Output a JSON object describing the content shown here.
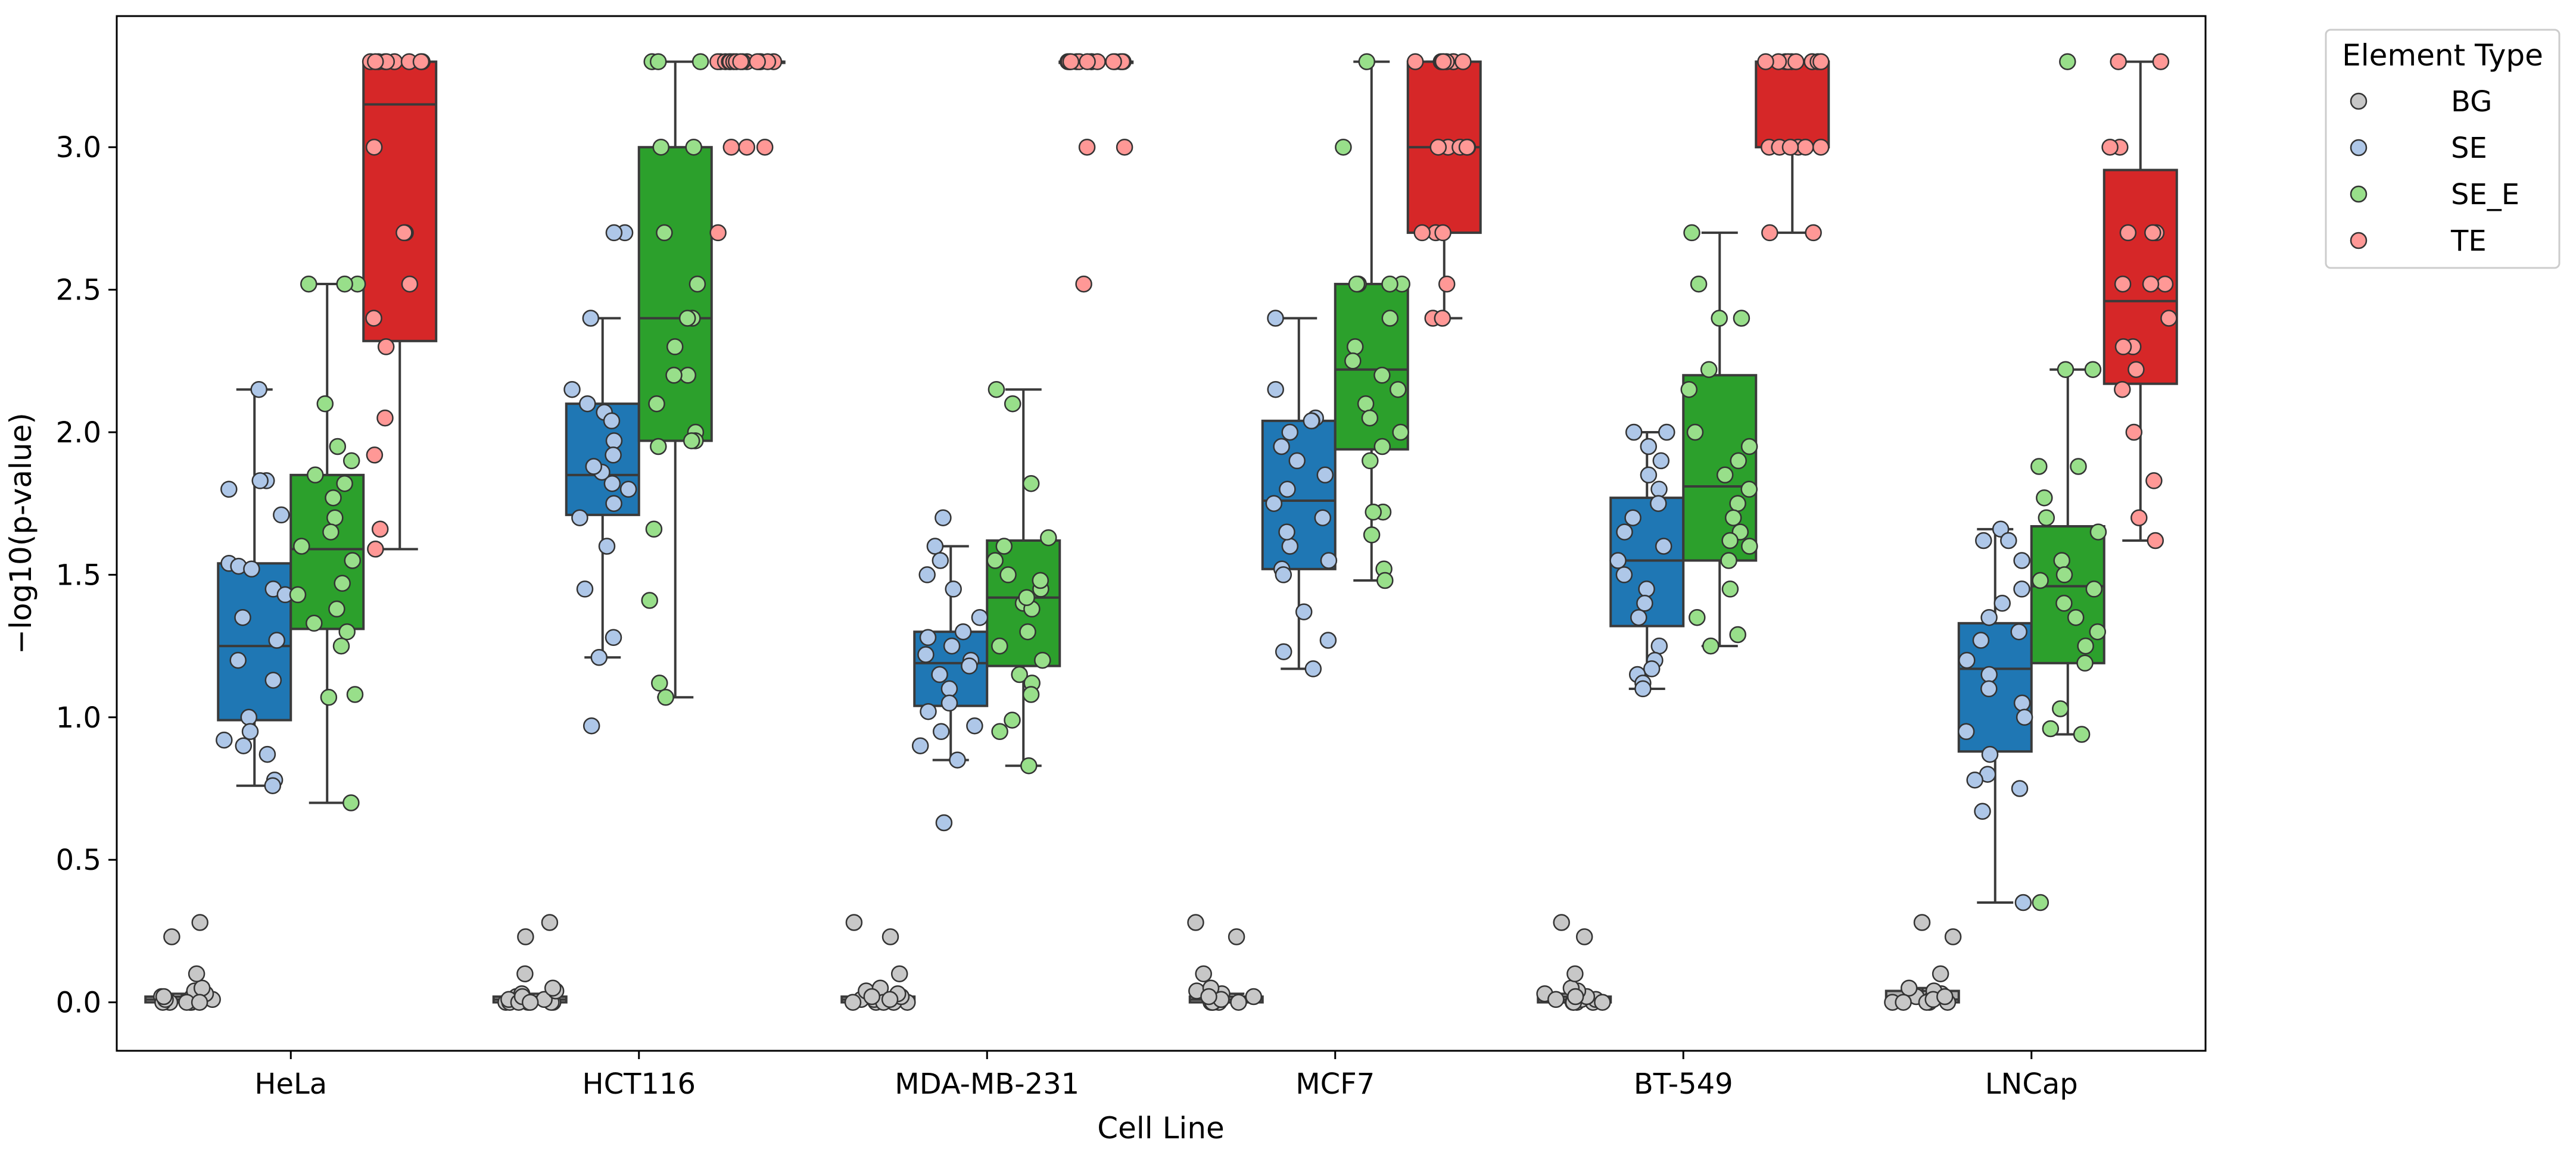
{
  "chart_data": {
    "type": "box",
    "xlabel": "Cell Line",
    "ylabel": "−log10(p-value)",
    "ylim": [
      -0.17,
      3.46
    ],
    "yticks": [
      "0.0",
      "0.5",
      "1.0",
      "1.5",
      "2.0",
      "2.5",
      "3.0"
    ],
    "categories": [
      "HeLa",
      "HCT116",
      "MDA-MB-231",
      "MCF7",
      "BT-549",
      "LNCap"
    ],
    "grid": false,
    "legend": {
      "title": "Element Type",
      "position": "upper-right-outside",
      "entries": [
        "BG",
        "SE",
        "SE_E",
        "TE"
      ]
    },
    "series": [
      {
        "name": "BG",
        "box_color": "#b0b0b0",
        "point_color": "#c7c7c7",
        "stats": [
          {
            "q1": 0.0,
            "median": 0.01,
            "q3": 0.02,
            "whisker_low": 0.0,
            "whisker_high": 0.03
          },
          {
            "q1": 0.0,
            "median": 0.01,
            "q3": 0.02,
            "whisker_low": 0.0,
            "whisker_high": 0.03
          },
          {
            "q1": 0.0,
            "median": 0.01,
            "q3": 0.02,
            "whisker_low": 0.0,
            "whisker_high": 0.03
          },
          {
            "q1": 0.0,
            "median": 0.01,
            "q3": 0.02,
            "whisker_low": 0.0,
            "whisker_high": 0.03
          },
          {
            "q1": 0.0,
            "median": 0.01,
            "q3": 0.02,
            "whisker_low": 0.0,
            "whisker_high": 0.03
          },
          {
            "q1": 0.0,
            "median": 0.01,
            "q3": 0.04,
            "whisker_low": 0.0,
            "whisker_high": 0.05
          }
        ],
        "points": [
          [
            0.0,
            0.0,
            0.0,
            0.01,
            0.01,
            0.02,
            0.02,
            0.03,
            0.04,
            0.05,
            0.1,
            0.23,
            0.28,
            0.0,
            0.0,
            0.01,
            0.02,
            0.0
          ],
          [
            0.0,
            0.0,
            0.0,
            0.0,
            0.01,
            0.01,
            0.02,
            0.03,
            0.04,
            0.05,
            0.1,
            0.23,
            0.28,
            0.0,
            0.01,
            0.0,
            0.02,
            0.0
          ],
          [
            0.0,
            0.0,
            0.0,
            0.01,
            0.01,
            0.02,
            0.03,
            0.04,
            0.05,
            0.1,
            0.23,
            0.28,
            0.0,
            0.0,
            0.01,
            0.02
          ],
          [
            0.0,
            0.0,
            0.0,
            0.01,
            0.01,
            0.02,
            0.03,
            0.04,
            0.05,
            0.1,
            0.23,
            0.28,
            0.0,
            0.0,
            0.01,
            0.02
          ],
          [
            0.0,
            0.0,
            0.0,
            0.01,
            0.01,
            0.02,
            0.03,
            0.04,
            0.05,
            0.1,
            0.23,
            0.28,
            0.0,
            0.0,
            0.01,
            0.02
          ],
          [
            0.0,
            0.0,
            0.0,
            0.01,
            0.01,
            0.02,
            0.03,
            0.04,
            0.05,
            0.1,
            0.23,
            0.28,
            0.0,
            0.0,
            0.01,
            0.02
          ]
        ]
      },
      {
        "name": "SE",
        "box_color": "#1f77b4",
        "point_color": "#aec7e8",
        "stats": [
          {
            "q1": 0.99,
            "median": 1.25,
            "q3": 1.54,
            "whisker_low": 0.76,
            "whisker_high": 2.15
          },
          {
            "q1": 1.71,
            "median": 1.85,
            "q3": 2.1,
            "whisker_low": 1.21,
            "whisker_high": 2.4
          },
          {
            "q1": 1.04,
            "median": 1.19,
            "q3": 1.3,
            "whisker_low": 0.85,
            "whisker_high": 1.6
          },
          {
            "q1": 1.52,
            "median": 1.76,
            "q3": 2.04,
            "whisker_low": 1.17,
            "whisker_high": 2.4
          },
          {
            "q1": 1.32,
            "median": 1.55,
            "q3": 1.77,
            "whisker_low": 1.1,
            "whisker_high": 2.0
          },
          {
            "q1": 0.88,
            "median": 1.17,
            "q3": 1.33,
            "whisker_low": 0.35,
            "whisker_high": 1.66
          }
        ],
        "points": [
          [
            2.15,
            1.83,
            1.8,
            1.71,
            1.54,
            1.53,
            1.52,
            1.45,
            1.35,
            1.27,
            1.2,
            1.13,
            1.0,
            0.95,
            0.92,
            0.9,
            0.87,
            0.78,
            0.76,
            1.43,
            1.83
          ],
          [
            2.7,
            2.4,
            2.15,
            2.1,
            2.07,
            2.04,
            1.97,
            1.92,
            1.86,
            1.82,
            1.8,
            1.75,
            1.7,
            1.6,
            1.45,
            1.28,
            1.21,
            0.97,
            2.7,
            1.88
          ],
          [
            1.7,
            1.6,
            1.55,
            1.5,
            1.45,
            1.35,
            1.3,
            1.25,
            1.2,
            1.18,
            1.15,
            1.1,
            1.05,
            1.02,
            0.97,
            0.95,
            0.9,
            0.85,
            0.63,
            1.22,
            1.28
          ],
          [
            2.4,
            2.15,
            2.05,
            2.04,
            2.04,
            2.0,
            1.95,
            1.9,
            1.85,
            1.8,
            1.75,
            1.7,
            1.6,
            1.55,
            1.52,
            1.5,
            1.37,
            1.27,
            1.23,
            1.17,
            1.65
          ],
          [
            2.0,
            2.0,
            1.95,
            1.9,
            1.85,
            1.8,
            1.75,
            1.7,
            1.65,
            1.6,
            1.55,
            1.5,
            1.45,
            1.4,
            1.35,
            1.25,
            1.2,
            1.17,
            1.15,
            1.12,
            1.1
          ],
          [
            1.66,
            1.62,
            1.55,
            1.45,
            1.4,
            1.35,
            1.3,
            1.27,
            1.2,
            1.15,
            1.1,
            1.05,
            1.0,
            0.95,
            0.87,
            0.8,
            0.78,
            0.75,
            0.67,
            0.35,
            1.62
          ]
        ]
      },
      {
        "name": "SE_E",
        "box_color": "#2ca02c",
        "point_color": "#98df8a",
        "stats": [
          {
            "q1": 1.31,
            "median": 1.59,
            "q3": 1.85,
            "whisker_low": 0.7,
            "whisker_high": 2.52
          },
          {
            "q1": 1.97,
            "median": 2.4,
            "q3": 3.0,
            "whisker_low": 1.07,
            "whisker_high": 3.3
          },
          {
            "q1": 1.18,
            "median": 1.42,
            "q3": 1.62,
            "whisker_low": 0.83,
            "whisker_high": 2.15
          },
          {
            "q1": 1.94,
            "median": 2.22,
            "q3": 2.52,
            "whisker_low": 1.48,
            "whisker_high": 3.3
          },
          {
            "q1": 1.55,
            "median": 1.81,
            "q3": 2.2,
            "whisker_low": 1.25,
            "whisker_high": 2.7
          },
          {
            "q1": 1.19,
            "median": 1.46,
            "q3": 1.67,
            "whisker_low": 0.94,
            "whisker_high": 2.22
          }
        ],
        "points": [
          [
            2.52,
            2.52,
            2.1,
            1.95,
            1.9,
            1.85,
            1.82,
            1.77,
            1.7,
            1.65,
            1.6,
            1.55,
            1.47,
            1.43,
            1.38,
            1.33,
            1.3,
            1.25,
            1.08,
            1.07,
            0.7,
            2.52
          ],
          [
            3.3,
            3.3,
            3.3,
            3.0,
            3.0,
            2.7,
            2.52,
            2.4,
            2.4,
            2.2,
            2.1,
            2.0,
            1.97,
            1.97,
            1.95,
            1.66,
            1.41,
            1.12,
            1.07,
            2.2,
            2.3
          ],
          [
            2.15,
            2.1,
            1.82,
            1.63,
            1.6,
            1.55,
            1.5,
            1.45,
            1.4,
            1.38,
            1.3,
            1.25,
            1.2,
            1.15,
            1.12,
            1.08,
            0.99,
            0.95,
            0.83,
            1.42,
            1.48
          ],
          [
            3.3,
            3.0,
            2.52,
            2.52,
            2.4,
            2.3,
            2.25,
            2.2,
            2.15,
            2.1,
            2.05,
            2.0,
            1.95,
            1.9,
            1.72,
            1.72,
            1.64,
            1.52,
            1.48,
            2.52,
            2.52
          ],
          [
            2.7,
            2.52,
            2.4,
            2.4,
            2.22,
            2.15,
            2.0,
            1.95,
            1.9,
            1.85,
            1.8,
            1.75,
            1.7,
            1.65,
            1.6,
            1.55,
            1.45,
            1.35,
            1.29,
            1.25,
            1.62
          ],
          [
            3.3,
            2.22,
            2.22,
            1.88,
            1.88,
            1.77,
            1.7,
            1.65,
            1.55,
            1.5,
            1.48,
            1.45,
            1.4,
            1.35,
            1.3,
            1.25,
            1.19,
            1.03,
            0.96,
            0.94,
            0.35
          ]
        ]
      },
      {
        "name": "TE",
        "box_color": "#d62728",
        "point_color": "#ff9896",
        "stats": [
          {
            "q1": 2.32,
            "median": 3.15,
            "q3": 3.3,
            "whisker_low": 1.59,
            "whisker_high": 3.3
          },
          {
            "q1": 3.3,
            "median": 3.3,
            "q3": 3.3,
            "whisker_low": 3.3,
            "whisker_high": 3.3
          },
          {
            "q1": 3.3,
            "median": 3.3,
            "q3": 3.3,
            "whisker_low": 3.3,
            "whisker_high": 3.3
          },
          {
            "q1": 2.7,
            "median": 3.0,
            "q3": 3.3,
            "whisker_low": 2.4,
            "whisker_high": 3.3
          },
          {
            "q1": 3.0,
            "median": 3.3,
            "q3": 3.3,
            "whisker_low": 2.7,
            "whisker_high": 3.3
          },
          {
            "q1": 2.17,
            "median": 2.46,
            "q3": 2.92,
            "whisker_low": 1.62,
            "whisker_high": 3.3
          }
        ],
        "points": [
          [
            3.3,
            3.3,
            3.3,
            3.3,
            3.3,
            3.3,
            3.3,
            3.0,
            2.7,
            2.7,
            2.52,
            2.4,
            2.3,
            2.05,
            1.92,
            1.66,
            1.59,
            3.3,
            3.3,
            3.3
          ],
          [
            3.3,
            3.3,
            3.3,
            3.3,
            3.3,
            3.3,
            3.3,
            3.3,
            3.3,
            3.3,
            3.3,
            3.3,
            3.3,
            3.0,
            3.0,
            3.0,
            2.7,
            3.3,
            3.3,
            3.3
          ],
          [
            3.3,
            3.3,
            3.3,
            3.3,
            3.3,
            3.3,
            3.3,
            3.3,
            3.3,
            3.3,
            3.3,
            3.3,
            3.3,
            3.3,
            3.0,
            3.0,
            2.52,
            3.3,
            3.3
          ],
          [
            3.3,
            3.3,
            3.3,
            3.3,
            3.3,
            3.3,
            3.3,
            3.0,
            3.0,
            3.0,
            3.0,
            2.7,
            2.7,
            2.7,
            2.52,
            2.4,
            2.4,
            3.3,
            3.3,
            3.0
          ],
          [
            3.3,
            3.3,
            3.3,
            3.3,
            3.3,
            3.3,
            3.3,
            3.3,
            3.3,
            3.0,
            3.0,
            3.0,
            3.0,
            3.0,
            3.0,
            2.7,
            2.7,
            3.3,
            3.3
          ],
          [
            3.3,
            3.3,
            3.0,
            3.0,
            2.7,
            2.7,
            2.52,
            2.52,
            2.4,
            2.3,
            2.3,
            2.22,
            2.15,
            2.0,
            1.83,
            1.7,
            1.62,
            2.52,
            2.7
          ]
        ]
      }
    ]
  }
}
